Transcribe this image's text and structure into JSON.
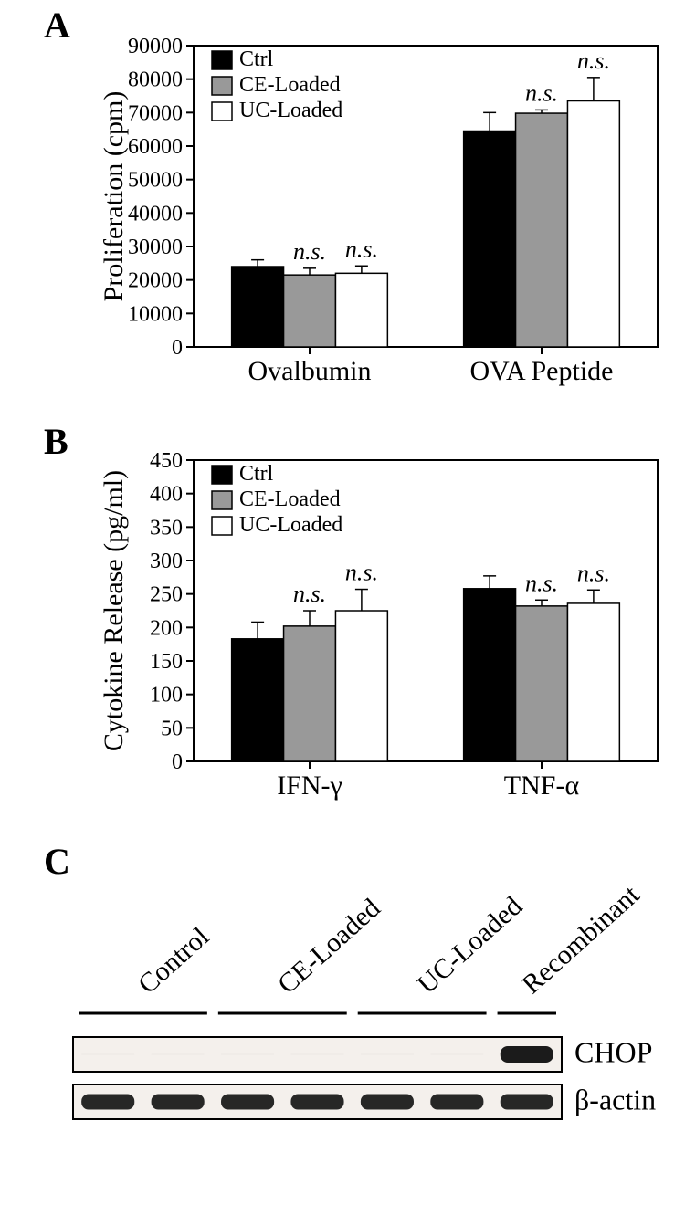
{
  "panelA": {
    "type": "bar",
    "label": "A",
    "yAxisTitle": "Proliferation (cpm)",
    "ylim": [
      0,
      90000
    ],
    "ytick_step": 10000,
    "categories": [
      "Ovalbumin",
      "OVA Peptide"
    ],
    "legend": [
      {
        "label": "Ctrl",
        "fill": "#000000"
      },
      {
        "label": "CE-Loaded",
        "fill": "#999999"
      },
      {
        "label": "UC-Loaded",
        "fill": "#ffffff"
      }
    ],
    "bars": [
      {
        "group": 0,
        "series": 0,
        "value": 24000,
        "err": 2000,
        "sig": ""
      },
      {
        "group": 0,
        "series": 1,
        "value": 21500,
        "err": 2000,
        "sig": "n.s."
      },
      {
        "group": 0,
        "series": 2,
        "value": 22000,
        "err": 2200,
        "sig": "n.s."
      },
      {
        "group": 1,
        "series": 0,
        "value": 64500,
        "err": 5500,
        "sig": ""
      },
      {
        "group": 1,
        "series": 1,
        "value": 69800,
        "err": 1000,
        "sig": "n.s."
      },
      {
        "group": 1,
        "series": 2,
        "value": 73500,
        "err": 7000,
        "sig": "n.s."
      }
    ],
    "label_fontsize": 30,
    "tick_fontsize": 24,
    "sig_fontsize": 26,
    "bar_width": 0.32,
    "colors": {
      "axis": "#000000",
      "bg": "#ffffff"
    }
  },
  "panelB": {
    "type": "bar",
    "label": "B",
    "yAxisTitle": "Cytokine Release (pg/ml)",
    "ylim": [
      0,
      450
    ],
    "ytick_step": 50,
    "categories": [
      "IFN-γ",
      "TNF-α"
    ],
    "legend": [
      {
        "label": "Ctrl",
        "fill": "#000000"
      },
      {
        "label": "CE-Loaded",
        "fill": "#999999"
      },
      {
        "label": "UC-Loaded",
        "fill": "#ffffff"
      }
    ],
    "bars": [
      {
        "group": 0,
        "series": 0,
        "value": 183,
        "err": 25,
        "sig": ""
      },
      {
        "group": 0,
        "series": 1,
        "value": 202,
        "err": 23,
        "sig": "n.s."
      },
      {
        "group": 0,
        "series": 2,
        "value": 225,
        "err": 32,
        "sig": "n.s."
      },
      {
        "group": 1,
        "series": 0,
        "value": 258,
        "err": 19,
        "sig": ""
      },
      {
        "group": 1,
        "series": 1,
        "value": 232,
        "err": 9,
        "sig": "n.s."
      },
      {
        "group": 1,
        "series": 2,
        "value": 236,
        "err": 20,
        "sig": "n.s."
      }
    ],
    "label_fontsize": 30,
    "tick_fontsize": 24,
    "sig_fontsize": 26,
    "bar_width": 0.32,
    "colors": {
      "axis": "#000000",
      "bg": "#ffffff"
    }
  },
  "panelC": {
    "label": "C",
    "lanes": [
      "Control",
      "Control",
      "CE-Loaded",
      "CE-Loaded",
      "UC-Loaded",
      "UC-Loaded",
      "Recombinant"
    ],
    "groups": [
      {
        "label": "Control",
        "span": 2
      },
      {
        "label": "CE-Loaded",
        "span": 2
      },
      {
        "label": "UC-Loaded",
        "span": 2
      },
      {
        "label": "Recombinant",
        "span": 1
      }
    ],
    "blots": [
      {
        "name": "CHOP",
        "bands": [
          0.02,
          0.02,
          0.02,
          0.02,
          0.02,
          0.02,
          0.9
        ]
      },
      {
        "name": "β-actin",
        "bands": [
          0.85,
          0.85,
          0.85,
          0.85,
          0.85,
          0.85,
          0.85
        ]
      }
    ],
    "label_fontsize": 30,
    "blot_fontsize": 32,
    "colors": {
      "outline": "#000000",
      "bg": "#f4f0ec",
      "band": "#1a1a1a"
    }
  }
}
